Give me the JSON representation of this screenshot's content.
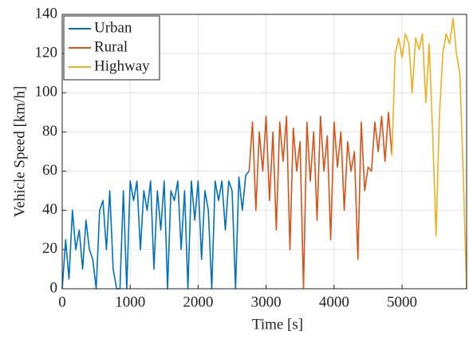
{
  "chart_data": {
    "type": "line",
    "x_label": "Time [s]",
    "y_label": "Vehicle Speed [km/h]",
    "x": [
      0,
      50,
      100,
      150,
      200,
      250,
      300,
      350,
      400,
      450,
      500,
      550,
      600,
      650,
      700,
      750,
      800,
      850,
      900,
      950,
      1000,
      1050,
      1100,
      1150,
      1200,
      1250,
      1300,
      1350,
      1400,
      1450,
      1500,
      1550,
      1600,
      1650,
      1700,
      1750,
      1800,
      1850,
      1900,
      1950,
      2000,
      2050,
      2100,
      2150,
      2200,
      2250,
      2300,
      2350,
      2400,
      2450,
      2500,
      2550,
      2600,
      2650,
      2700,
      2750,
      2800,
      2850,
      2900,
      2950,
      3000,
      3050,
      3100,
      3150,
      3200,
      3250,
      3300,
      3350,
      3400,
      3450,
      3500,
      3550,
      3600,
      3650,
      3700,
      3750,
      3800,
      3850,
      3900,
      3950,
      4000,
      4050,
      4100,
      4150,
      4200,
      4250,
      4300,
      4350,
      4400,
      4450,
      4500,
      4550,
      4600,
      4650,
      4700,
      4750,
      4800,
      4850,
      4900,
      4950,
      5000,
      5050,
      5100,
      5150,
      5200,
      5250,
      5300,
      5350,
      5400,
      5450,
      5500,
      5550,
      5600,
      5650,
      5700,
      5750,
      5800,
      5850,
      5900,
      5950
    ],
    "series": [
      {
        "name": "Urban",
        "color": "#0072bd",
        "values": [
          0,
          25,
          5,
          40,
          20,
          30,
          10,
          35,
          20,
          15,
          0,
          40,
          45,
          20,
          50,
          10,
          0,
          0,
          50,
          0,
          55,
          45,
          55,
          20,
          50,
          40,
          55,
          10,
          50,
          30,
          55,
          0,
          50,
          45,
          55,
          20,
          50,
          0,
          55,
          35,
          55,
          15,
          50,
          40,
          0,
          55,
          45,
          55,
          30,
          55,
          50,
          0,
          57,
          40,
          58,
          60,
          null,
          null,
          null,
          null,
          null,
          null,
          null,
          null,
          null,
          null,
          null,
          null,
          null,
          null,
          null,
          null,
          null,
          null,
          null,
          null,
          null,
          null,
          null,
          null,
          null,
          null,
          null,
          null,
          null,
          null,
          null,
          null,
          null,
          null,
          null,
          null,
          null,
          null,
          null,
          null,
          null,
          null,
          null,
          null,
          null,
          null,
          null,
          null,
          null,
          null,
          null,
          null,
          null,
          null,
          null,
          null,
          null,
          null,
          null,
          null,
          null,
          null,
          null,
          null
        ]
      },
      {
        "name": "Rural",
        "color": "#d95319",
        "values": [
          null,
          null,
          null,
          null,
          null,
          null,
          null,
          null,
          null,
          null,
          null,
          null,
          null,
          null,
          null,
          null,
          null,
          null,
          null,
          null,
          null,
          null,
          null,
          null,
          null,
          null,
          null,
          null,
          null,
          null,
          null,
          null,
          null,
          null,
          null,
          null,
          null,
          null,
          null,
          null,
          null,
          null,
          null,
          null,
          null,
          null,
          null,
          null,
          null,
          null,
          null,
          null,
          null,
          null,
          null,
          60,
          85,
          40,
          80,
          60,
          88,
          45,
          80,
          30,
          85,
          65,
          88,
          20,
          82,
          60,
          75,
          0,
          85,
          55,
          80,
          35,
          88,
          60,
          78,
          25,
          85,
          62,
          80,
          40,
          75,
          60,
          70,
          15,
          85,
          50,
          62,
          60,
          85,
          70,
          88,
          65,
          90,
          68,
          null,
          null,
          null,
          null,
          null,
          null,
          null,
          null,
          null,
          null,
          null,
          null,
          null,
          null,
          null,
          null,
          null,
          null,
          null,
          null,
          null,
          null
        ]
      },
      {
        "name": "Highway",
        "color": "#edb120",
        "values": [
          null,
          null,
          null,
          null,
          null,
          null,
          null,
          null,
          null,
          null,
          null,
          null,
          null,
          null,
          null,
          null,
          null,
          null,
          null,
          null,
          null,
          null,
          null,
          null,
          null,
          null,
          null,
          null,
          null,
          null,
          null,
          null,
          null,
          null,
          null,
          null,
          null,
          null,
          null,
          null,
          null,
          null,
          null,
          null,
          null,
          null,
          null,
          null,
          null,
          null,
          null,
          null,
          null,
          null,
          null,
          null,
          null,
          null,
          null,
          null,
          null,
          null,
          null,
          null,
          null,
          null,
          null,
          null,
          null,
          null,
          null,
          null,
          null,
          null,
          null,
          null,
          null,
          null,
          null,
          null,
          null,
          null,
          null,
          null,
          null,
          null,
          null,
          null,
          null,
          null,
          null,
          null,
          null,
          null,
          null,
          null,
          null,
          68,
          120,
          128,
          118,
          130,
          125,
          100,
          128,
          122,
          130,
          95,
          125,
          80,
          27,
          88,
          120,
          130,
          125,
          138,
          120,
          110,
          60,
          0
        ]
      }
    ],
    "xlim": [
      0,
      5950
    ],
    "xticks": [
      0,
      1000,
      2000,
      3000,
      4000,
      5000
    ],
    "ylim": [
      0,
      140
    ],
    "yticks": [
      0,
      20,
      40,
      60,
      80,
      100,
      120,
      140
    ],
    "grid": true,
    "legend": "upper-left"
  }
}
